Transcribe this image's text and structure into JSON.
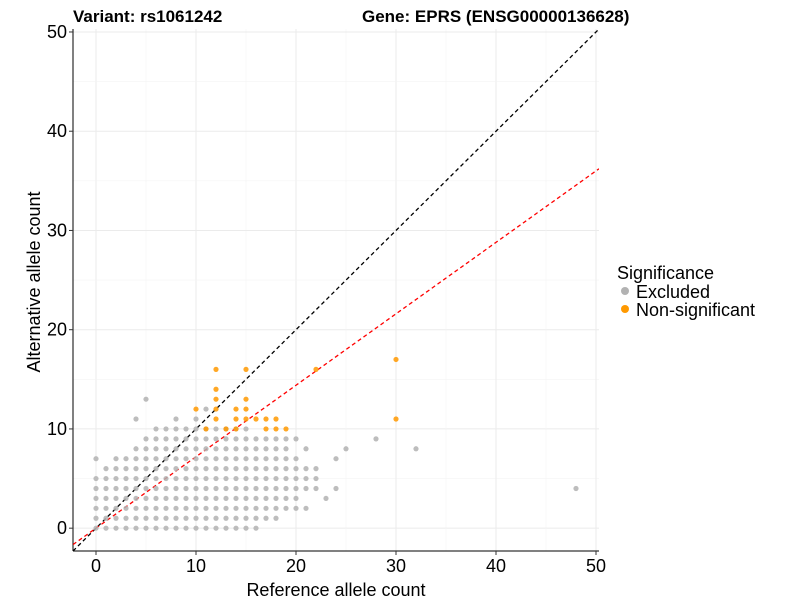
{
  "chart_data": {
    "type": "scatter",
    "title_left": "Variant: rs1061242",
    "title_right": "Gene: EPRS (ENSG00000136628)",
    "xlabel": "Reference allele count",
    "ylabel": "Alternative allele count",
    "xlim": [
      -2.3,
      50.3
    ],
    "ylim": [
      -2.3,
      50.3
    ],
    "xticks": [
      0,
      10,
      20,
      30,
      40,
      50
    ],
    "yticks": [
      0,
      10,
      20,
      30,
      40,
      50
    ],
    "grid": true,
    "legend": {
      "title": "Significance",
      "position": "right",
      "entries": [
        {
          "label": "Excluded",
          "color": "#b2b2b2"
        },
        {
          "label": "Non-significant",
          "color": "#ff9900"
        }
      ]
    },
    "reference_lines": [
      {
        "name": "identity",
        "slope": 1.0,
        "intercept": 0,
        "color": "#000000",
        "style": "dashed"
      },
      {
        "name": "fitted",
        "slope": 0.72,
        "intercept": 0,
        "color": "#ff0000",
        "style": "dashed"
      }
    ],
    "series": [
      {
        "name": "Excluded",
        "color": "#b2b2b2",
        "points": [
          [
            0,
            0
          ],
          [
            0,
            1
          ],
          [
            0,
            2
          ],
          [
            0,
            3
          ],
          [
            0,
            4
          ],
          [
            0,
            5
          ],
          [
            0,
            7
          ],
          [
            1,
            0
          ],
          [
            1,
            1
          ],
          [
            1,
            2
          ],
          [
            1,
            3
          ],
          [
            1,
            4
          ],
          [
            1,
            5
          ],
          [
            1,
            6
          ],
          [
            2,
            0
          ],
          [
            2,
            1
          ],
          [
            2,
            2
          ],
          [
            2,
            3
          ],
          [
            2,
            4
          ],
          [
            2,
            5
          ],
          [
            2,
            6
          ],
          [
            2,
            7
          ],
          [
            3,
            0
          ],
          [
            3,
            1
          ],
          [
            3,
            2
          ],
          [
            3,
            3
          ],
          [
            3,
            4
          ],
          [
            3,
            5
          ],
          [
            3,
            6
          ],
          [
            3,
            7
          ],
          [
            4,
            0
          ],
          [
            4,
            1
          ],
          [
            4,
            2
          ],
          [
            4,
            3
          ],
          [
            4,
            4
          ],
          [
            4,
            5
          ],
          [
            4,
            6
          ],
          [
            4,
            7
          ],
          [
            4,
            8
          ],
          [
            4,
            11
          ],
          [
            5,
            0
          ],
          [
            5,
            1
          ],
          [
            5,
            2
          ],
          [
            5,
            3
          ],
          [
            5,
            4
          ],
          [
            5,
            5
          ],
          [
            5,
            6
          ],
          [
            5,
            7
          ],
          [
            5,
            8
          ],
          [
            5,
            9
          ],
          [
            5,
            13
          ],
          [
            6,
            0
          ],
          [
            6,
            1
          ],
          [
            6,
            2
          ],
          [
            6,
            3
          ],
          [
            6,
            4
          ],
          [
            6,
            5
          ],
          [
            6,
            6
          ],
          [
            6,
            7
          ],
          [
            6,
            8
          ],
          [
            6,
            9
          ],
          [
            6,
            10
          ],
          [
            7,
            0
          ],
          [
            7,
            1
          ],
          [
            7,
            2
          ],
          [
            7,
            3
          ],
          [
            7,
            4
          ],
          [
            7,
            5
          ],
          [
            7,
            6
          ],
          [
            7,
            7
          ],
          [
            7,
            8
          ],
          [
            7,
            9
          ],
          [
            7,
            10
          ],
          [
            8,
            0
          ],
          [
            8,
            1
          ],
          [
            8,
            2
          ],
          [
            8,
            3
          ],
          [
            8,
            4
          ],
          [
            8,
            5
          ],
          [
            8,
            6
          ],
          [
            8,
            7
          ],
          [
            8,
            8
          ],
          [
            8,
            9
          ],
          [
            8,
            10
          ],
          [
            8,
            11
          ],
          [
            9,
            0
          ],
          [
            9,
            1
          ],
          [
            9,
            2
          ],
          [
            9,
            3
          ],
          [
            9,
            4
          ],
          [
            9,
            5
          ],
          [
            9,
            6
          ],
          [
            9,
            7
          ],
          [
            9,
            8
          ],
          [
            9,
            9
          ],
          [
            9,
            10
          ],
          [
            10,
            0
          ],
          [
            10,
            1
          ],
          [
            10,
            2
          ],
          [
            10,
            3
          ],
          [
            10,
            4
          ],
          [
            10,
            5
          ],
          [
            10,
            6
          ],
          [
            10,
            7
          ],
          [
            10,
            8
          ],
          [
            10,
            9
          ],
          [
            10,
            10
          ],
          [
            10,
            11
          ],
          [
            11,
            0
          ],
          [
            11,
            1
          ],
          [
            11,
            2
          ],
          [
            11,
            3
          ],
          [
            11,
            4
          ],
          [
            11,
            5
          ],
          [
            11,
            6
          ],
          [
            11,
            7
          ],
          [
            11,
            8
          ],
          [
            11,
            9
          ],
          [
            11,
            10
          ],
          [
            11,
            12
          ],
          [
            12,
            0
          ],
          [
            12,
            1
          ],
          [
            12,
            2
          ],
          [
            12,
            3
          ],
          [
            12,
            4
          ],
          [
            12,
            5
          ],
          [
            12,
            6
          ],
          [
            12,
            7
          ],
          [
            12,
            8
          ],
          [
            12,
            9
          ],
          [
            12,
            10
          ],
          [
            13,
            0
          ],
          [
            13,
            1
          ],
          [
            13,
            2
          ],
          [
            13,
            3
          ],
          [
            13,
            4
          ],
          [
            13,
            5
          ],
          [
            13,
            6
          ],
          [
            13,
            7
          ],
          [
            13,
            8
          ],
          [
            13,
            9
          ],
          [
            13,
            10
          ],
          [
            14,
            0
          ],
          [
            14,
            1
          ],
          [
            14,
            2
          ],
          [
            14,
            3
          ],
          [
            14,
            4
          ],
          [
            14,
            5
          ],
          [
            14,
            6
          ],
          [
            14,
            7
          ],
          [
            14,
            8
          ],
          [
            14,
            9
          ],
          [
            14,
            10
          ],
          [
            15,
            0
          ],
          [
            15,
            1
          ],
          [
            15,
            2
          ],
          [
            15,
            3
          ],
          [
            15,
            4
          ],
          [
            15,
            5
          ],
          [
            15,
            6
          ],
          [
            15,
            7
          ],
          [
            15,
            8
          ],
          [
            15,
            9
          ],
          [
            15,
            10
          ],
          [
            16,
            0
          ],
          [
            16,
            1
          ],
          [
            16,
            2
          ],
          [
            16,
            3
          ],
          [
            16,
            4
          ],
          [
            16,
            5
          ],
          [
            16,
            6
          ],
          [
            16,
            7
          ],
          [
            16,
            8
          ],
          [
            16,
            9
          ],
          [
            17,
            1
          ],
          [
            17,
            2
          ],
          [
            17,
            3
          ],
          [
            17,
            4
          ],
          [
            17,
            5
          ],
          [
            17,
            6
          ],
          [
            17,
            7
          ],
          [
            17,
            8
          ],
          [
            17,
            9
          ],
          [
            18,
            1
          ],
          [
            18,
            2
          ],
          [
            18,
            3
          ],
          [
            18,
            4
          ],
          [
            18,
            5
          ],
          [
            18,
            6
          ],
          [
            18,
            7
          ],
          [
            18,
            8
          ],
          [
            18,
            9
          ],
          [
            19,
            2
          ],
          [
            19,
            3
          ],
          [
            19,
            4
          ],
          [
            19,
            5
          ],
          [
            19,
            6
          ],
          [
            19,
            7
          ],
          [
            19,
            8
          ],
          [
            19,
            9
          ],
          [
            20,
            2
          ],
          [
            20,
            3
          ],
          [
            20,
            4
          ],
          [
            20,
            5
          ],
          [
            20,
            6
          ],
          [
            20,
            7
          ],
          [
            20,
            9
          ],
          [
            21,
            2
          ],
          [
            21,
            4
          ],
          [
            21,
            5
          ],
          [
            21,
            6
          ],
          [
            21,
            8
          ],
          [
            22,
            4
          ],
          [
            22,
            5
          ],
          [
            22,
            6
          ],
          [
            23,
            3
          ],
          [
            24,
            4
          ],
          [
            24,
            7
          ],
          [
            25,
            8
          ],
          [
            28,
            9
          ],
          [
            32,
            8
          ],
          [
            48,
            4
          ]
        ]
      },
      {
        "name": "Non-significant",
        "color": "#ff9900",
        "points": [
          [
            10,
            12
          ],
          [
            11,
            10
          ],
          [
            12,
            11
          ],
          [
            12,
            12
          ],
          [
            12,
            13
          ],
          [
            12,
            14
          ],
          [
            12,
            16
          ],
          [
            13,
            10
          ],
          [
            14,
            10
          ],
          [
            14,
            11
          ],
          [
            14,
            12
          ],
          [
            15,
            11
          ],
          [
            15,
            12
          ],
          [
            15,
            13
          ],
          [
            15,
            16
          ],
          [
            16,
            11
          ],
          [
            17,
            10
          ],
          [
            17,
            11
          ],
          [
            18,
            10
          ],
          [
            18,
            11
          ],
          [
            19,
            10
          ],
          [
            22,
            16
          ],
          [
            30,
            11
          ],
          [
            30,
            17
          ]
        ]
      }
    ]
  }
}
